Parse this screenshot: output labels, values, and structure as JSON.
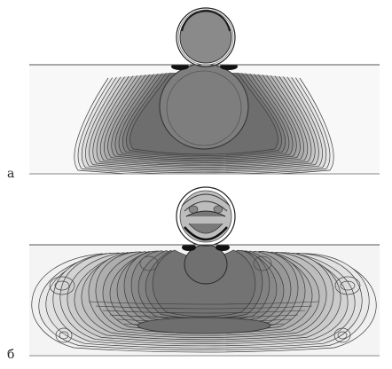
{
  "panels": [
    {
      "label": "а"
    },
    {
      "label": "б"
    }
  ],
  "colors": {
    "background": "#ffffff",
    "fill_dark": "#7a7a7a",
    "fill_light": "#f2f2f2",
    "contour": "#3a3a3a",
    "boundary": "#555555"
  }
}
